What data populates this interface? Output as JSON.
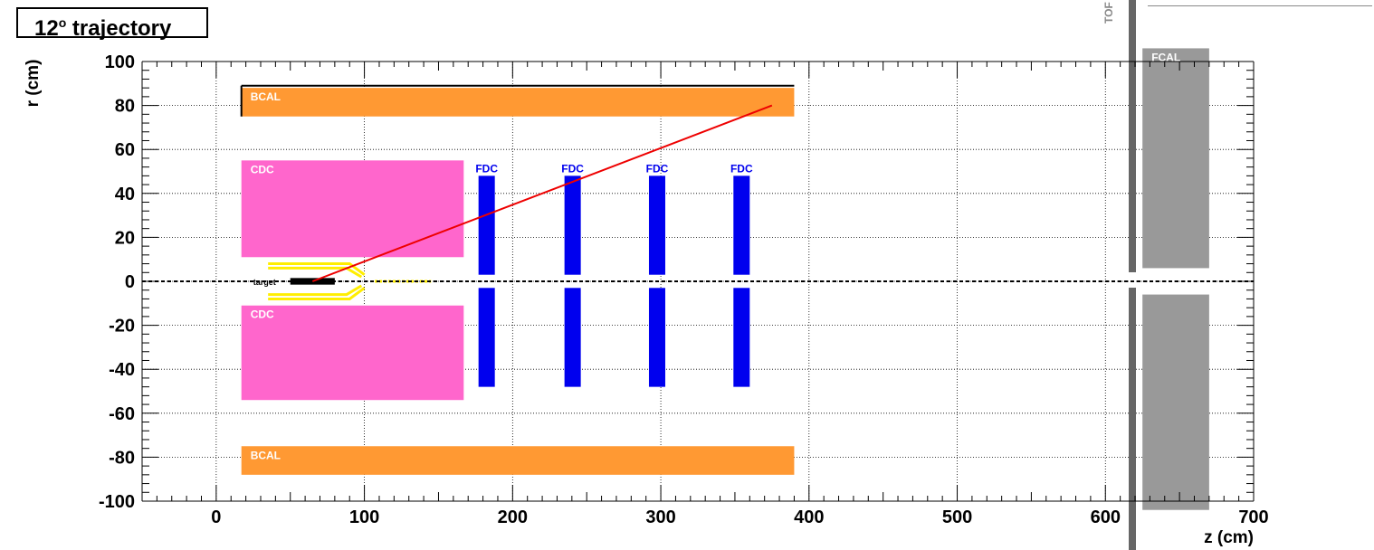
{
  "title": {
    "text": "12",
    "sup": "o",
    "rest": " trajectory"
  },
  "top_labels": {
    "tof": "TOF"
  },
  "chart_data": {
    "type": "scatter",
    "title": "12° trajectory",
    "xlabel": "z (cm)",
    "ylabel": "r (cm)",
    "xlim": [
      -50,
      700
    ],
    "ylim": [
      -100,
      100
    ],
    "x_ticks": [
      0,
      100,
      200,
      300,
      400,
      500,
      600,
      700
    ],
    "y_ticks": [
      -100,
      -80,
      -60,
      -40,
      -20,
      0,
      20,
      40,
      60,
      80,
      100
    ],
    "grid": true,
    "detectors": [
      {
        "label": "BCAL",
        "z": [
          17,
          390
        ],
        "r": [
          75,
          88
        ],
        "color": "#ff9933"
      },
      {
        "label": "BCAL",
        "z": [
          17,
          390
        ],
        "r": [
          -88,
          -75
        ],
        "color": "#ff9933"
      },
      {
        "label": "CDC",
        "z": [
          17,
          167
        ],
        "r": [
          11,
          55
        ],
        "color": "#ff66cc"
      },
      {
        "label": "CDC",
        "z": [
          17,
          167
        ],
        "r": [
          -54,
          -11
        ],
        "color": "#ff66cc"
      },
      {
        "label": "FDC",
        "z": [
          177,
          188
        ],
        "r": [
          3,
          48
        ],
        "color": "#0000ee"
      },
      {
        "label": "FDC",
        "z": [
          235,
          246
        ],
        "r": [
          3,
          48
        ],
        "color": "#0000ee"
      },
      {
        "label": "FDC",
        "z": [
          292,
          303
        ],
        "r": [
          3,
          48
        ],
        "color": "#0000ee"
      },
      {
        "label": "FDC",
        "z": [
          349,
          360
        ],
        "r": [
          3,
          48
        ],
        "color": "#0000ee"
      },
      {
        "label": "FCAL",
        "z": [
          625,
          670
        ],
        "r": [
          6,
          106
        ],
        "color": "#999999"
      }
    ],
    "target_label": "target",
    "trajectory": {
      "angle_deg": 12,
      "from": [
        65,
        0
      ],
      "to": [
        375,
        80
      ],
      "color": "#ee0000"
    }
  }
}
